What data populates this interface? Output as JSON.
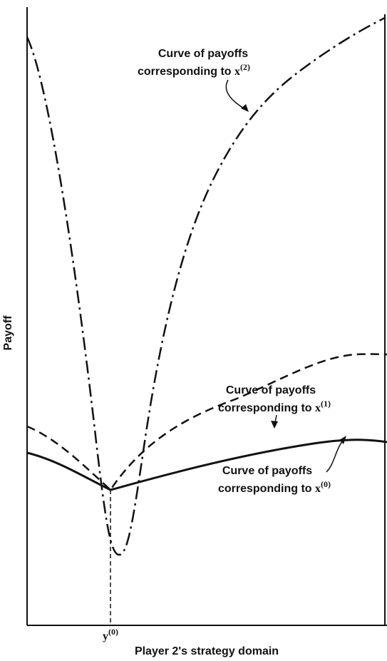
{
  "y_axis_label": "Payoff",
  "x_axis_label": "Player 2's strategy domain",
  "point_label": {
    "var": "y",
    "sup": "(0)"
  },
  "curves": [
    {
      "line1": "Curve of payoffs",
      "line2": "corresponding to",
      "var": "x",
      "sup": "(0)"
    },
    {
      "line1": "Curve of payoffs",
      "line2": "corresponding to",
      "var": "x",
      "sup": "(1)"
    },
    {
      "line1": "Curve of payoffs",
      "line2": "corresponding to",
      "var": "x",
      "sup": "(2)"
    }
  ]
}
